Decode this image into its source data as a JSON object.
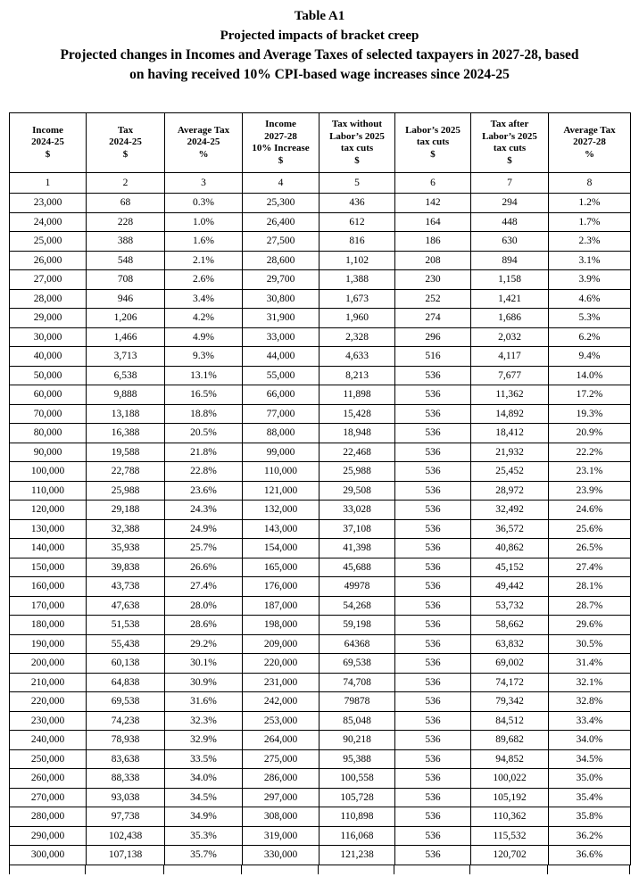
{
  "title": {
    "lines": [
      "Table A1",
      "Projected impacts of bracket creep",
      "Projected changes in Incomes and Average Taxes of selected taxpayers in 2027-28, based",
      "on having received 10% CPI-based wage increases since 2024-25"
    ]
  },
  "table": {
    "headers": [
      [
        "Income",
        "2024-25",
        "$"
      ],
      [
        "Tax",
        "2024-25",
        "$"
      ],
      [
        "Average Tax",
        "2024-25",
        "%"
      ],
      [
        "Income",
        "2027-28",
        "10% Increase",
        "$"
      ],
      [
        "Tax without",
        "Labor’s 2025",
        "tax cuts",
        "$"
      ],
      [
        "Labor’s 2025",
        "tax cuts",
        "$"
      ],
      [
        "Tax after",
        "Labor’s 2025",
        "tax cuts",
        "$"
      ],
      [
        "Average Tax",
        "2027-28",
        "%"
      ]
    ],
    "column_numbers": [
      "1",
      "2",
      "3",
      "4",
      "5",
      "6",
      "7",
      "8"
    ],
    "rows": [
      [
        "23,000",
        "68",
        "0.3%",
        "25,300",
        "436",
        "142",
        "294",
        "1.2%"
      ],
      [
        "24,000",
        "228",
        "1.0%",
        "26,400",
        "612",
        "164",
        "448",
        "1.7%"
      ],
      [
        "25,000",
        "388",
        "1.6%",
        "27,500",
        "816",
        "186",
        "630",
        "2.3%"
      ],
      [
        "26,000",
        "548",
        "2.1%",
        "28,600",
        "1,102",
        "208",
        "894",
        "3.1%"
      ],
      [
        "27,000",
        "708",
        "2.6%",
        "29,700",
        "1,388",
        "230",
        "1,158",
        "3.9%"
      ],
      [
        "28,000",
        "946",
        "3.4%",
        "30,800",
        "1,673",
        "252",
        "1,421",
        "4.6%"
      ],
      [
        "29,000",
        "1,206",
        "4.2%",
        "31,900",
        "1,960",
        "274",
        "1,686",
        "5.3%"
      ],
      [
        "30,000",
        "1,466",
        "4.9%",
        "33,000",
        "2,328",
        "296",
        "2,032",
        "6.2%"
      ],
      [
        "40,000",
        "3,713",
        "9.3%",
        "44,000",
        "4,633",
        "516",
        "4,117",
        "9.4%"
      ],
      [
        "50,000",
        "6,538",
        "13.1%",
        "55,000",
        "8,213",
        "536",
        "7,677",
        "14.0%"
      ],
      [
        "60,000",
        "9,888",
        "16.5%",
        "66,000",
        "11,898",
        "536",
        "11,362",
        "17.2%"
      ],
      [
        "70,000",
        "13,188",
        "18.8%",
        "77,000",
        "15,428",
        "536",
        "14,892",
        "19.3%"
      ],
      [
        "80,000",
        "16,388",
        "20.5%",
        "88,000",
        "18,948",
        "536",
        "18,412",
        "20.9%"
      ],
      [
        "90,000",
        "19,588",
        "21.8%",
        "99,000",
        "22,468",
        "536",
        "21,932",
        "22.2%"
      ],
      [
        "100,000",
        "22,788",
        "22.8%",
        "110,000",
        "25,988",
        "536",
        "25,452",
        "23.1%"
      ],
      [
        "110,000",
        "25,988",
        "23.6%",
        "121,000",
        "29,508",
        "536",
        "28,972",
        "23.9%"
      ],
      [
        "120,000",
        "29,188",
        "24.3%",
        "132,000",
        "33,028",
        "536",
        "32,492",
        "24.6%"
      ],
      [
        "130,000",
        "32,388",
        "24.9%",
        "143,000",
        "37,108",
        "536",
        "36,572",
        "25.6%"
      ],
      [
        "140,000",
        "35,938",
        "25.7%",
        "154,000",
        "41,398",
        "536",
        "40,862",
        "26.5%"
      ],
      [
        "150,000",
        "39,838",
        "26.6%",
        "165,000",
        "45,688",
        "536",
        "45,152",
        "27.4%"
      ],
      [
        "160,000",
        "43,738",
        "27.4%",
        "176,000",
        "49978",
        "536",
        "49,442",
        "28.1%"
      ],
      [
        "170,000",
        "47,638",
        "28.0%",
        "187,000",
        "54,268",
        "536",
        "53,732",
        "28.7%"
      ],
      [
        "180,000",
        "51,538",
        "28.6%",
        "198,000",
        "59,198",
        "536",
        "58,662",
        "29.6%"
      ],
      [
        "190,000",
        "55,438",
        "29.2%",
        "209,000",
        "64368",
        "536",
        "63,832",
        "30.5%"
      ],
      [
        "200,000",
        "60,138",
        "30.1%",
        "220,000",
        "69,538",
        "536",
        "69,002",
        "31.4%"
      ],
      [
        "210,000",
        "64,838",
        "30.9%",
        "231,000",
        "74,708",
        "536",
        "74,172",
        "32.1%"
      ],
      [
        "220,000",
        "69,538",
        "31.6%",
        "242,000",
        "79878",
        "536",
        "79,342",
        "32.8%"
      ],
      [
        "230,000",
        "74,238",
        "32.3%",
        "253,000",
        "85,048",
        "536",
        "84,512",
        "33.4%"
      ],
      [
        "240,000",
        "78,938",
        "32.9%",
        "264,000",
        "90,218",
        "536",
        "89,682",
        "34.0%"
      ],
      [
        "250,000",
        "83,638",
        "33.5%",
        "275,000",
        "95,388",
        "536",
        "94,852",
        "34.5%"
      ],
      [
        "260,000",
        "88,338",
        "34.0%",
        "286,000",
        "100,558",
        "536",
        "100,022",
        "35.0%"
      ],
      [
        "270,000",
        "93,038",
        "34.5%",
        "297,000",
        "105,728",
        "536",
        "105,192",
        "35.4%"
      ],
      [
        "280,000",
        "97,738",
        "34.9%",
        "308,000",
        "110,898",
        "536",
        "110,362",
        "35.8%"
      ],
      [
        "290,000",
        "102,438",
        "35.3%",
        "319,000",
        "116,068",
        "536",
        "115,532",
        "36.2%"
      ],
      [
        "300,000",
        "107,138",
        "35.7%",
        "330,000",
        "121,238",
        "536",
        "120,702",
        "36.6%"
      ]
    ],
    "text_color": "#000000",
    "border_color": "#000000"
  }
}
